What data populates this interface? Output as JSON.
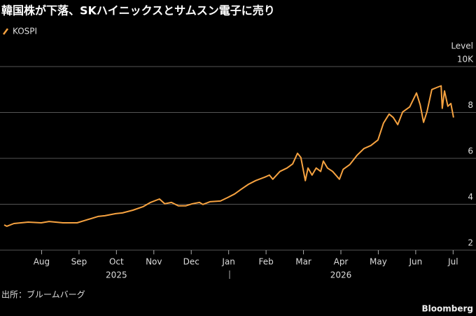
{
  "chart_data": {
    "type": "line",
    "title": "韓国株が下落、SKハイニックスとサムスン電子に売り",
    "y_label": "Level",
    "source": "出所：ブルームバーグ",
    "brand": "Bloomberg",
    "x": [
      0.0,
      0.07,
      0.26,
      0.64,
      0.99,
      1.2,
      1.57,
      1.95,
      2.13,
      2.51,
      2.69,
      2.98,
      3.16,
      3.44,
      3.72,
      3.91,
      4.15,
      4.29,
      4.47,
      4.66,
      4.85,
      5.03,
      5.22,
      5.31,
      5.5,
      5.78,
      5.97,
      6.16,
      6.34,
      6.53,
      6.72,
      6.96,
      7.09,
      7.18,
      7.37,
      7.56,
      7.71,
      7.84,
      7.93,
      8.05,
      8.12,
      8.23,
      8.34,
      8.46,
      8.53,
      8.64,
      8.78,
      8.96,
      9.06,
      9.24,
      9.43,
      9.62,
      9.8,
      9.99,
      10.14,
      10.29,
      10.4,
      10.52,
      10.65,
      10.84,
      11.02,
      11.12,
      11.21,
      11.3,
      11.43,
      11.58,
      11.68,
      11.71,
      11.77,
      11.86,
      11.94,
      12.01
    ],
    "series": [
      {
        "name": "KOSPI",
        "color": "#f6a240",
        "values": [
          3.1,
          3.04,
          3.16,
          3.22,
          3.19,
          3.25,
          3.19,
          3.19,
          3.28,
          3.47,
          3.5,
          3.59,
          3.62,
          3.74,
          3.9,
          4.08,
          4.23,
          4.02,
          4.08,
          3.93,
          3.93,
          4.02,
          4.08,
          3.99,
          4.11,
          4.14,
          4.29,
          4.45,
          4.66,
          4.87,
          5.03,
          5.18,
          5.27,
          5.09,
          5.43,
          5.58,
          5.76,
          6.22,
          6.04,
          5.03,
          5.58,
          5.27,
          5.58,
          5.43,
          5.88,
          5.58,
          5.43,
          5.09,
          5.52,
          5.73,
          6.13,
          6.43,
          6.56,
          6.8,
          7.54,
          7.93,
          7.78,
          7.47,
          8.02,
          8.24,
          8.85,
          8.33,
          7.57,
          8.02,
          9.0,
          9.1,
          9.16,
          8.18,
          8.94,
          8.27,
          8.39,
          7.78
        ]
      }
    ],
    "xlim": [
      0,
      12.05
    ],
    "xticks": [
      {
        "value": 1,
        "label": "Aug"
      },
      {
        "value": 2,
        "label": "Sep"
      },
      {
        "value": 3,
        "label": "Oct"
      },
      {
        "value": 4,
        "label": "Nov"
      },
      {
        "value": 5,
        "label": "Dec"
      },
      {
        "value": 6,
        "label": "Jan"
      },
      {
        "value": 7,
        "label": "Feb"
      },
      {
        "value": 8,
        "label": "Mar"
      },
      {
        "value": 9,
        "label": "Apr"
      },
      {
        "value": 10,
        "label": "May"
      },
      {
        "value": 11,
        "label": "Jun"
      },
      {
        "value": 12,
        "label": "Jul"
      }
    ],
    "x_year_labels": [
      {
        "value": 3,
        "label": "2025"
      },
      {
        "value": 9,
        "label": "2026"
      }
    ],
    "ylim": [
      2,
      10
    ],
    "yticks": [
      2,
      4,
      6,
      8,
      {
        "value": 10,
        "label": "10K"
      }
    ],
    "grid": true
  }
}
